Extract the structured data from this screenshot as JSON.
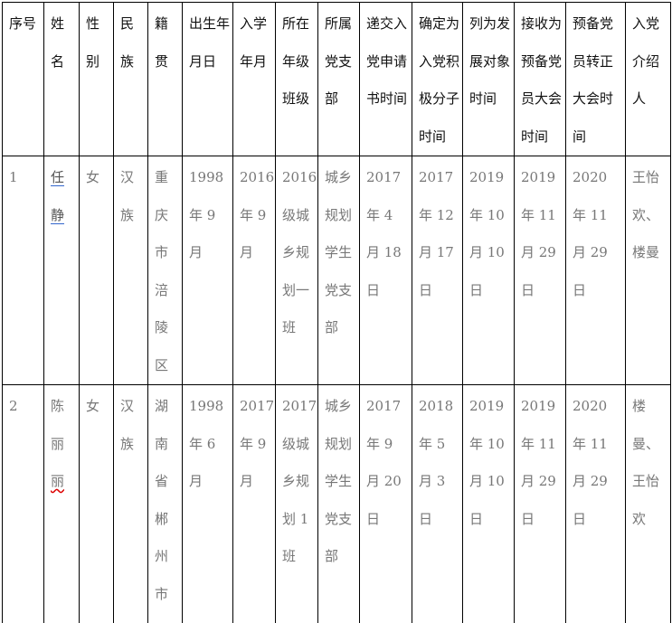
{
  "headers": [
    "序号",
    "姓\n名",
    "性\n别",
    "民\n族",
    "籍\n贯",
    "出生年\n月日",
    "入学\n年月",
    "所在\n年级\n班级",
    "所属\n党支\n部",
    "递交入\n党申请\n书时间",
    "确定为\n入党积\n极分子\n时间",
    "列为发\n展对象\n时间",
    "接收为\n预备党\n员大会\n时间",
    "预备党\n员转正\n大会时\n间",
    "入党\n介绍\n人"
  ],
  "rows": [
    {
      "no": "1",
      "name_lines": [
        "任",
        "静"
      ],
      "cells": [
        "女",
        "汉\n族",
        "重\n庆\n市\n涪\n陵\n区",
        "1998\n年 9\n月",
        "2016\n年 9\n月",
        "2016\n级城\n乡规\n划一\n班",
        "城乡\n规划\n学生\n党支\n部",
        "2017\n年 4\n月 18\n日",
        "2017\n年 12\n月 17\n日",
        "2019\n年 10\n月 10\n日",
        "2019\n年 11\n月 29\n日",
        "2020\n年 11\n月 29\n日",
        "王怡\n欢、\n楼曼"
      ]
    },
    {
      "no": "2",
      "name_lines": [
        "陈",
        "丽",
        "丽"
      ],
      "cells": [
        "女",
        "汉\n族",
        "湖\n南\n省\n郴\n州\n市",
        "1998\n年 6\n月",
        "2017\n年 9\n月",
        "2017\n级城\n乡规\n划 1\n班",
        "城乡\n规划\n学生\n党支\n部",
        "2017\n年 9\n月 20\n日",
        "2018\n年 5\n月 3\n日",
        "2019\n年 10\n月 10\n日",
        "2019\n年 11\n月 29\n日",
        "2020\n年 11\n月 29\n日",
        "楼\n曼、\n王怡\n欢"
      ]
    }
  ]
}
